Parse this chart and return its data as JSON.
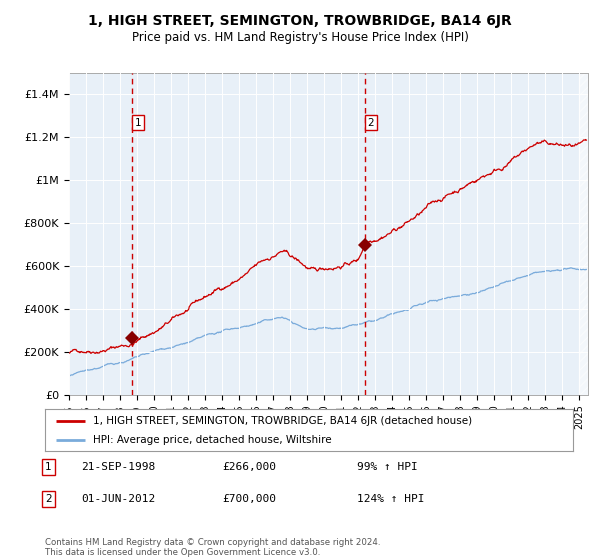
{
  "title": "1, HIGH STREET, SEMINGTON, TROWBRIDGE, BA14 6JR",
  "subtitle": "Price paid vs. HM Land Registry's House Price Index (HPI)",
  "background_color": "#e8f0f8",
  "hatch_color": "#c0ccd8",
  "red_line_color": "#cc0000",
  "blue_line_color": "#7aabdb",
  "marker_color": "#880000",
  "dashed_line_color": "#cc0000",
  "transaction1": {
    "date_label": "21-SEP-1998",
    "price": 266000,
    "hpi_pct": "99%",
    "x_year": 1998.72
  },
  "transaction2": {
    "date_label": "01-JUN-2012",
    "price": 700000,
    "hpi_pct": "124%",
    "x_year": 2012.42
  },
  "legend_label1": "1, HIGH STREET, SEMINGTON, TROWBRIDGE, BA14 6JR (detached house)",
  "legend_label2": "HPI: Average price, detached house, Wiltshire",
  "footer": "Contains HM Land Registry data © Crown copyright and database right 2024.\nThis data is licensed under the Open Government Licence v3.0.",
  "ylim": [
    0,
    1500000
  ],
  "xlim_start": 1995.0,
  "xlim_end": 2025.5,
  "yticks": [
    0,
    200000,
    400000,
    600000,
    800000,
    1000000,
    1200000,
    1400000
  ],
  "ytick_labels": [
    "£0",
    "£200K",
    "£400K",
    "£600K",
    "£800K",
    "£1M",
    "£1.2M",
    "£1.4M"
  ]
}
